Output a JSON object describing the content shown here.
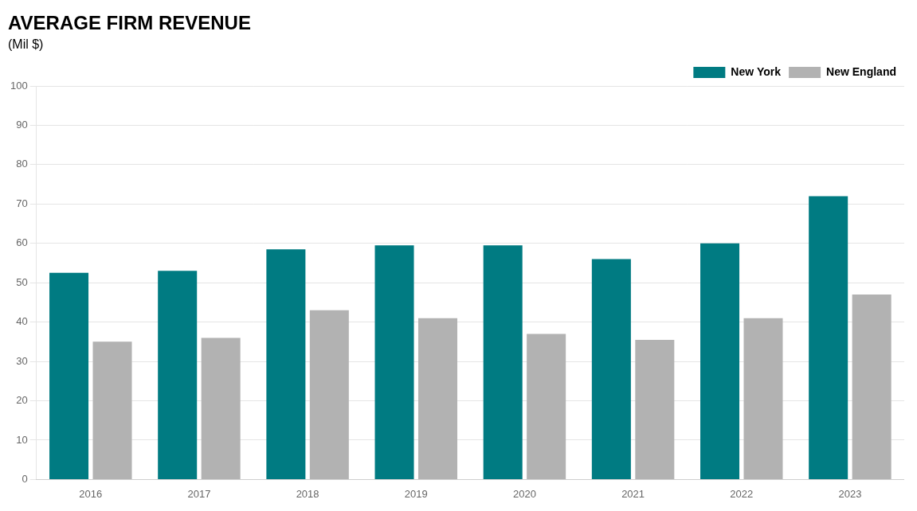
{
  "chart_data": {
    "type": "bar",
    "title": "AVERAGE FIRM REVENUE",
    "subtitle": "(Mil $)",
    "categories": [
      "2016",
      "2017",
      "2018",
      "2019",
      "2020",
      "2021",
      "2022",
      "2023"
    ],
    "series": [
      {
        "name": "New York",
        "color": "#007b82",
        "values": [
          52.5,
          53.0,
          58.5,
          59.5,
          59.5,
          56.0,
          60.0,
          72.0
        ]
      },
      {
        "name": "New England",
        "color": "#b2b2b2",
        "values": [
          35.0,
          36.0,
          43.0,
          41.0,
          37.0,
          35.5,
          41.0,
          47.0
        ]
      }
    ],
    "ylim": [
      0,
      100
    ],
    "yticks": [
      0,
      10,
      20,
      30,
      40,
      50,
      60,
      70,
      80,
      90,
      100
    ],
    "grid": true,
    "legend": "upper right"
  }
}
